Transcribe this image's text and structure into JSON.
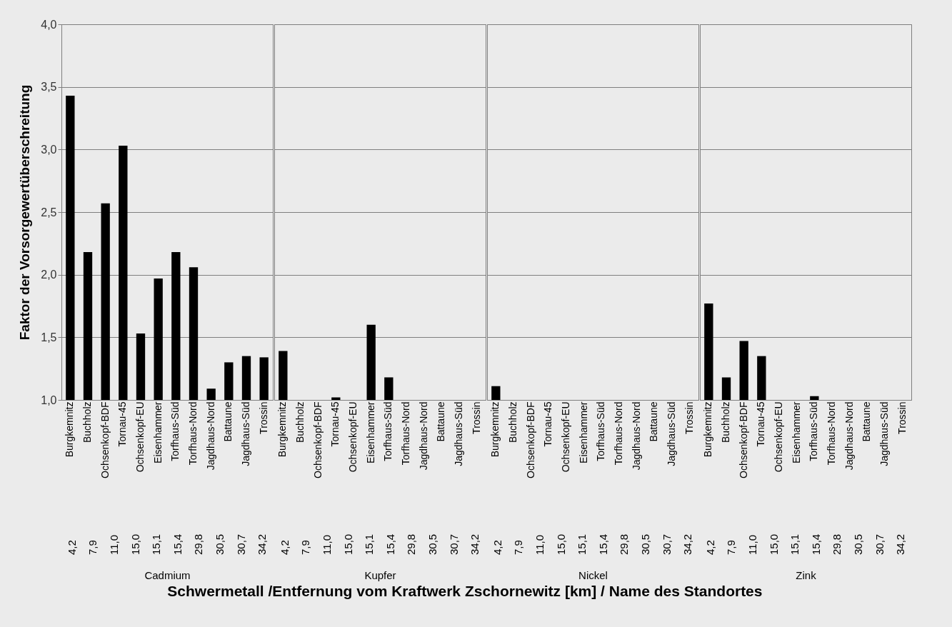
{
  "chart_data": [
    {
      "type": "bar",
      "title": "Schwermetall /Entfernung vom Kraftwerk Zschornewitz [km] / Name des Standortes",
      "ylabel": "Faktor der Vorsorgewertüberschreitung",
      "xlabel": "Cadmium",
      "categories": [
        "Burgkemnitz",
        "Buchholz",
        "Ochsenkopf-BDF",
        "Tornau-45",
        "Ochsenkopf-EU",
        "Eisenhammer",
        "Torfhaus-Süd",
        "Torfhaus-Nord",
        "Jagdhaus-Nord",
        "Battaune",
        "Jagdhaus-Süd",
        "Trossin"
      ],
      "values": [
        3.43,
        2.18,
        2.57,
        3.03,
        1.53,
        1.97,
        2.18,
        2.06,
        1.09,
        1.3,
        1.35,
        1.34
      ],
      "color": "#000000",
      "ylim": [
        1,
        4
      ],
      "yticks": [
        {
          "value": 1,
          "label": "1,0"
        },
        {
          "value": 1.5,
          "label": "1,5"
        },
        {
          "value": 2,
          "label": "2,0"
        },
        {
          "value": 2.5,
          "label": "2,5"
        },
        {
          "value": 3,
          "label": "3,0"
        },
        {
          "value": 3.5,
          "label": "3,5"
        },
        {
          "value": 4,
          "label": "4,0"
        }
      ],
      "grid": "y",
      "annotations": [
        "4,2",
        "7,9",
        "11,0",
        "15,0",
        "15,1",
        "15,4",
        "29,8",
        "30,5",
        "30,7",
        "34,2"
      ]
    },
    {
      "type": "bar",
      "xlabel": "Kupfer",
      "categories": [
        "Burgkemnitz",
        "Buchholz",
        "Ochsenkopf-BDF",
        "Tornau-45",
        "Ochsenkopf-EU",
        "Eisenhammer",
        "Torfhaus-Süd",
        "Torfhaus-Nord",
        "Jagdhaus-Nord",
        "Battaune",
        "Jagdhaus-Süd",
        "Trossin"
      ],
      "values": [
        1.39,
        null,
        null,
        1.02,
        null,
        1.6,
        1.18,
        null,
        null,
        null,
        null,
        null
      ],
      "color": "#000000",
      "ylim": [
        1,
        4
      ],
      "yticks": [
        1,
        1.5,
        2,
        2.5,
        3,
        3.5,
        4
      ],
      "grid": "y",
      "tick_labels": "x",
      "annotations": [
        "4,2",
        "7,9",
        "11,0",
        "15,0",
        "15,1",
        "15,4",
        "29,8",
        "30,5",
        "30,7",
        "34,2"
      ]
    },
    {
      "type": "bar",
      "xlabel": "Nickel",
      "categories": [
        "Burgkemnitz",
        "Buchholz",
        "Ochsenkopf-BDF",
        "Tornau-45",
        "Ochsenkopf-EU",
        "Eisenhammer",
        "Torfhaus-Süd",
        "Torfhaus-Nord",
        "Jagdhaus-Nord",
        "Battaune",
        "Jagdhaus-Süd",
        "Trossin"
      ],
      "values": [
        1.11,
        null,
        null,
        null,
        null,
        null,
        null,
        null,
        null,
        null,
        null,
        null
      ],
      "color": "#000000",
      "ylim": [
        1,
        4
      ],
      "yticks": [
        1,
        1.5,
        2,
        2.5,
        3,
        3.5,
        4
      ],
      "grid": "y",
      "tick_labels": "x",
      "annotations": [
        "4,2",
        "7,9",
        "11,0",
        "15,0",
        "15,1",
        "15,4",
        "29,8",
        "30,5",
        "30,7",
        "34,2"
      ]
    },
    {
      "type": "bar",
      "xlabel": "Zink",
      "categories": [
        "Burgkemnitz",
        "Buchholz",
        "Ochsenkopf-BDF",
        "Tornau-45",
        "Ochsenkopf-EU",
        "Eisenhammer",
        "Torfhaus-Süd",
        "Torfhaus-Nord",
        "Jagdhaus-Nord",
        "Battaune",
        "Jagdhaus-Süd",
        "Trossin"
      ],
      "values": [
        1.77,
        1.18,
        1.47,
        1.35,
        null,
        null,
        1.03,
        null,
        null,
        null,
        null,
        null
      ],
      "color": "#000000",
      "ylim": [
        1,
        4
      ],
      "yticks": [
        1,
        1.5,
        2,
        2.5,
        3,
        3.5,
        4
      ],
      "grid": "y",
      "tick_labels": "x",
      "annotations": [
        "4,2",
        "7,9",
        "11,0",
        "15,0",
        "15,1",
        "15,4",
        "29,8",
        "30,5",
        "30,7",
        "34,2"
      ]
    }
  ]
}
